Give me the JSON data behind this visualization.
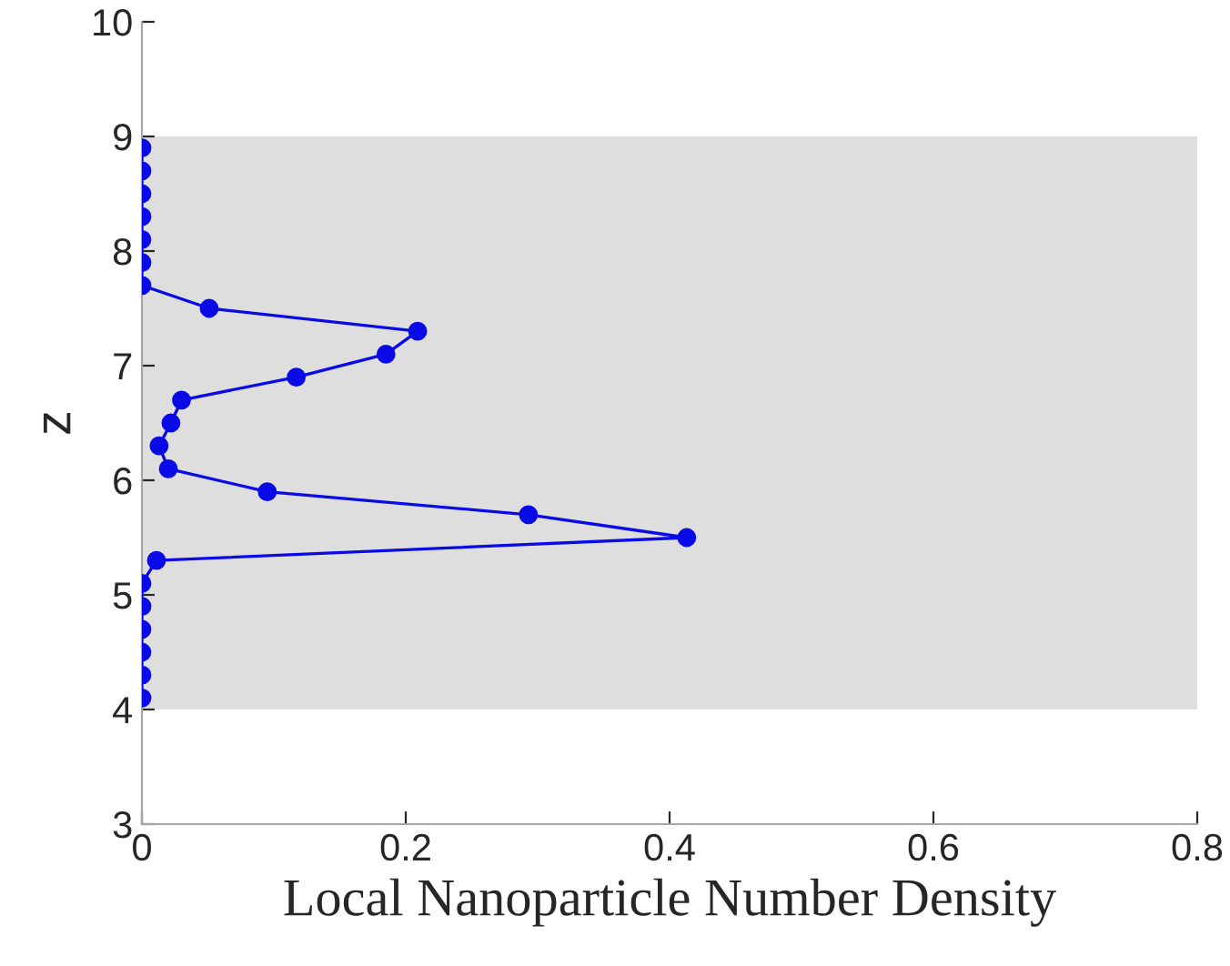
{
  "chart_data": {
    "type": "line",
    "xlabel": "Local Nanoparticle Number Density",
    "ylabel": "z",
    "x": [
      0,
      0,
      0,
      0,
      0,
      0,
      0.011,
      0.413,
      0.293,
      0.095,
      0.02,
      0.013,
      0.022,
      0.03,
      0.117,
      0.185,
      0.209,
      0.051,
      0,
      0,
      0,
      0,
      0,
      0,
      0
    ],
    "series": [
      {
        "color": "#0a0ae6",
        "values": [
          4.1,
          4.3,
          4.5,
          4.7,
          4.9,
          5.1,
          5.3,
          5.5,
          5.7,
          5.9,
          6.1,
          6.3,
          6.5,
          6.7,
          6.9,
          7.1,
          7.3,
          7.5,
          7.7,
          7.9,
          8.1,
          8.3,
          8.5,
          8.7,
          8.9
        ]
      }
    ],
    "xlim": [
      0,
      0.8
    ],
    "xticks": [
      0,
      0.2,
      0.4,
      0.6,
      0.8
    ],
    "ylim": [
      3,
      10
    ],
    "yticks": [
      3,
      4,
      5,
      6,
      7,
      8,
      9,
      10
    ],
    "bands": [
      {
        "axis": "y",
        "from": 4,
        "to": 9,
        "color": "#dedede"
      }
    ],
    "marker": "circle",
    "line_style": "solid",
    "grid": false,
    "legend": false
  }
}
